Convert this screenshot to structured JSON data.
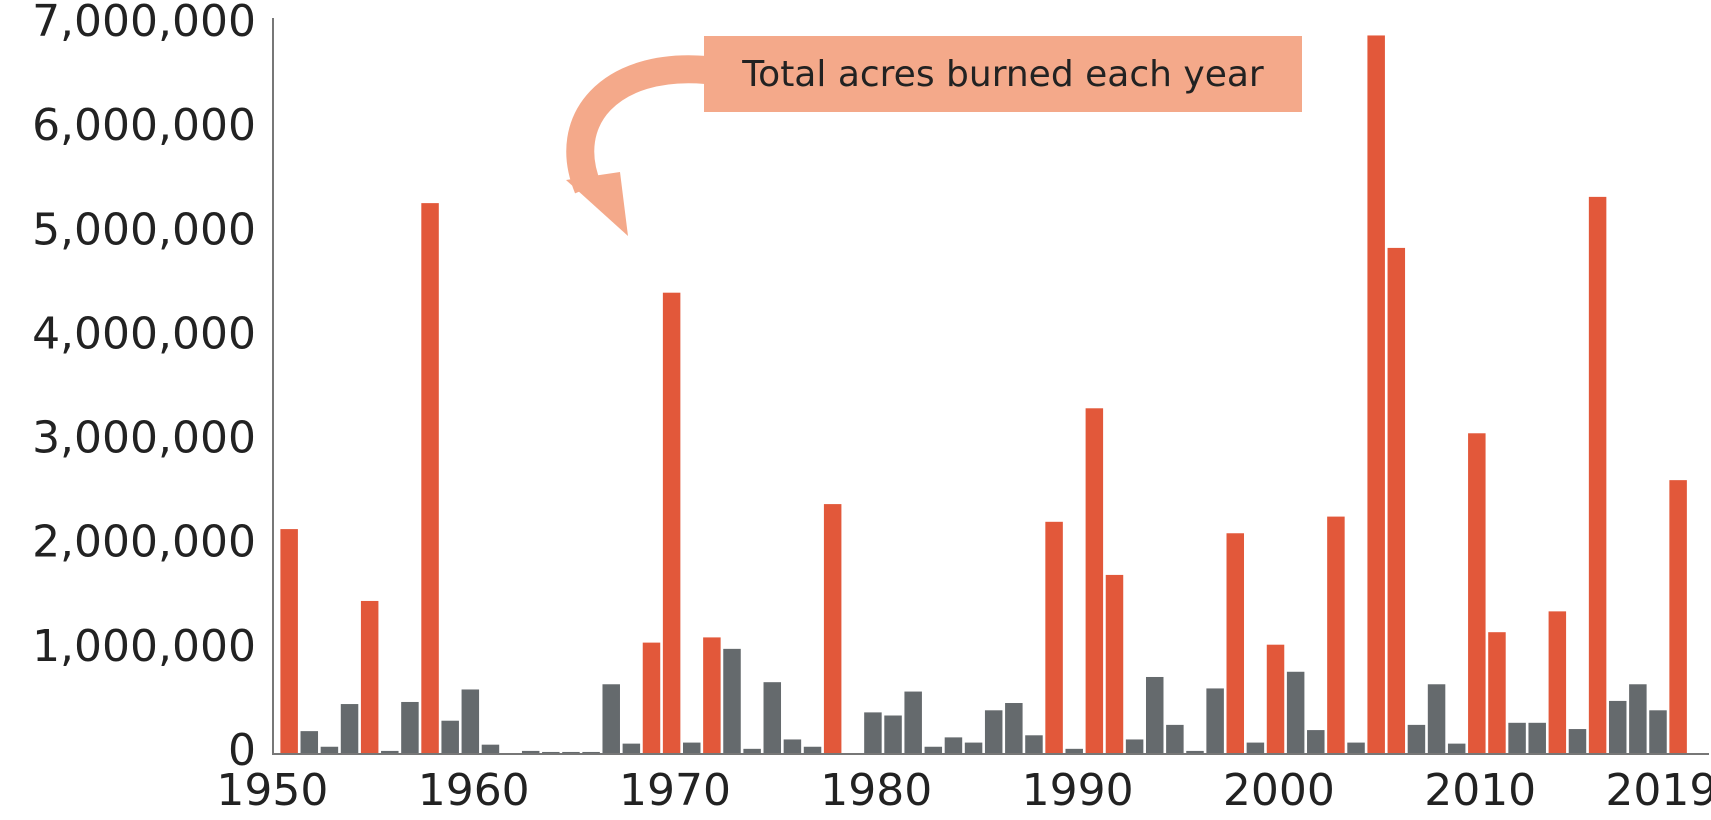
{
  "chart_data": {
    "type": "bar",
    "annotation": "Total acres burned each year",
    "x": [
      1950,
      1951,
      1952,
      1953,
      1954,
      1955,
      1956,
      1957,
      1958,
      1959,
      1960,
      1961,
      1962,
      1963,
      1964,
      1965,
      1966,
      1967,
      1968,
      1969,
      1970,
      1971,
      1972,
      1973,
      1974,
      1975,
      1976,
      1977,
      1978,
      1979,
      1980,
      1981,
      1982,
      1983,
      1984,
      1985,
      1986,
      1987,
      1988,
      1989,
      1990,
      1991,
      1992,
      1993,
      1994,
      1995,
      1996,
      1997,
      1998,
      1999,
      2000,
      2001,
      2002,
      2003,
      2004,
      2005,
      2006,
      2007,
      2008,
      2009,
      2010,
      2011,
      2012,
      2013,
      2014,
      2015,
      2016,
      2017,
      2018,
      2019
    ],
    "values": [
      2150000,
      210000,
      60000,
      470000,
      1460000,
      20000,
      490000,
      5280000,
      310000,
      610000,
      80000,
      0,
      20000,
      10000,
      10000,
      10000,
      660000,
      90000,
      1060000,
      4420000,
      100000,
      1110000,
      1000000,
      40000,
      680000,
      130000,
      60000,
      2390000,
      0,
      390000,
      360000,
      590000,
      60000,
      150000,
      100000,
      410000,
      480000,
      170000,
      2220000,
      40000,
      3310000,
      1710000,
      130000,
      730000,
      270000,
      20000,
      620000,
      2110000,
      100000,
      1040000,
      780000,
      220000,
      2270000,
      100000,
      6890000,
      4850000,
      270000,
      660000,
      90000,
      3070000,
      1160000,
      290000,
      290000,
      1360000,
      230000,
      5340000,
      500000,
      660000,
      410000,
      2620000
    ],
    "colors": [
      "#e2583a",
      "#656a6d",
      "#656a6d",
      "#656a6d",
      "#e2583a",
      "#656a6d",
      "#656a6d",
      "#e2583a",
      "#656a6d",
      "#656a6d",
      "#656a6d",
      "#656a6d",
      "#656a6d",
      "#656a6d",
      "#656a6d",
      "#656a6d",
      "#656a6d",
      "#656a6d",
      "#e2583a",
      "#e2583a",
      "#656a6d",
      "#e2583a",
      "#656a6d",
      "#656a6d",
      "#656a6d",
      "#656a6d",
      "#656a6d",
      "#e2583a",
      "#656a6d",
      "#656a6d",
      "#656a6d",
      "#656a6d",
      "#656a6d",
      "#656a6d",
      "#656a6d",
      "#656a6d",
      "#656a6d",
      "#656a6d",
      "#e2583a",
      "#656a6d",
      "#e2583a",
      "#e2583a",
      "#656a6d",
      "#656a6d",
      "#656a6d",
      "#656a6d",
      "#656a6d",
      "#e2583a",
      "#656a6d",
      "#e2583a",
      "#656a6d",
      "#656a6d",
      "#e2583a",
      "#656a6d",
      "#e2583a",
      "#e2583a",
      "#656a6d",
      "#656a6d",
      "#656a6d",
      "#e2583a",
      "#e2583a",
      "#656a6d",
      "#656a6d",
      "#e2583a",
      "#656a6d",
      "#e2583a",
      "#656a6d",
      "#656a6d",
      "#656a6d",
      "#e2583a"
    ],
    "xlim": [
      1950,
      2019
    ],
    "xticks": [
      1950,
      1960,
      1970,
      1980,
      1990,
      2000,
      2010,
      2019
    ],
    "ylim": [
      0,
      7000000
    ],
    "yticks": [
      0,
      {
        "value": 1000000,
        "label": "1,000,000"
      },
      {
        "value": 2000000,
        "label": "2,000,000"
      },
      {
        "value": 3000000,
        "label": "3,000,000"
      },
      {
        "value": 4000000,
        "label": "4,000,000"
      },
      {
        "value": 5000000,
        "label": "5,000,000"
      },
      {
        "value": 6000000,
        "label": "6,000,000"
      },
      {
        "value": 7000000,
        "label": "7,000,000"
      }
    ],
    "grid": false
  }
}
